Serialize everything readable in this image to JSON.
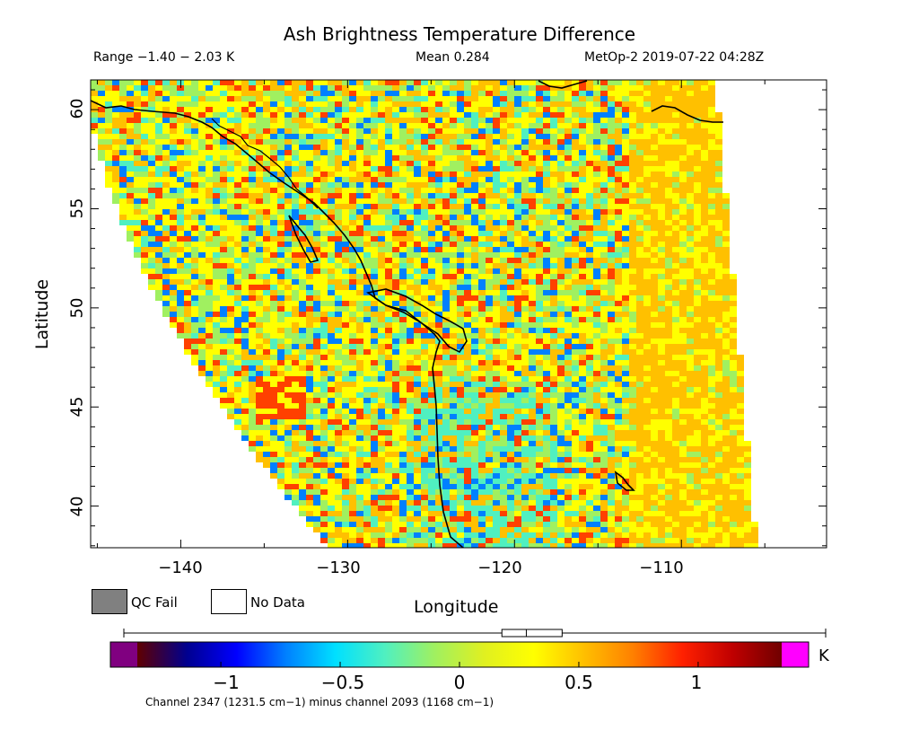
{
  "header": {
    "title": "Ash Brightness Temperature Difference",
    "range": "Range −1.40 − 2.03 K",
    "mean": "Mean 0.284",
    "satellite_time": "MetOp-2 2019-07-22 04:28Z"
  },
  "axes": {
    "xlabel": "Longitude",
    "ylabel": "Latitude",
    "x_ticks": [
      "−140",
      "−130",
      "−120",
      "−110"
    ],
    "y_ticks": [
      "60",
      "55",
      "50",
      "45",
      "40"
    ],
    "x_range": [
      -145.4,
      -101.3
    ],
    "y_range": [
      37.9,
      61.5
    ]
  },
  "legend": {
    "qc_fail": "QC Fail",
    "no_data": "No Data",
    "qc_fail_color": "#808080",
    "no_data_color": "#ffffff"
  },
  "colorbar": {
    "ticks": [
      "−1",
      "−0.5",
      "0",
      "0.5",
      "1"
    ],
    "tick_values": [
      -1,
      -0.5,
      0,
      0.5,
      1
    ],
    "range": [
      -1.35,
      1.35
    ],
    "unit": "K",
    "under_color": "#800080",
    "over_color": "#ff00ff",
    "colors": [
      "#600000",
      "#00008f",
      "#0000ff",
      "#0080ff",
      "#00e0ff",
      "#50f0c0",
      "#a0f060",
      "#e0f020",
      "#ffff00",
      "#ffc000",
      "#ff8000",
      "#ff2000",
      "#c00000",
      "#700000"
    ],
    "boxplot": {
      "min": -1.4,
      "q1": 0.14,
      "median": 0.28,
      "q3": 0.43,
      "max": 2.03
    }
  },
  "footnote": "Channel 2347 (1231.5 cm−1) minus channel 2093 (1168 cm−1)",
  "map": {
    "coastline_color": "#000000",
    "field_colors": {
      "green": "#a0f060",
      "yellow": "#ffff00",
      "orange": "#ffc000",
      "cyan": "#50f0c0",
      "red": "#ff4000",
      "blue": "#0080ff"
    }
  }
}
